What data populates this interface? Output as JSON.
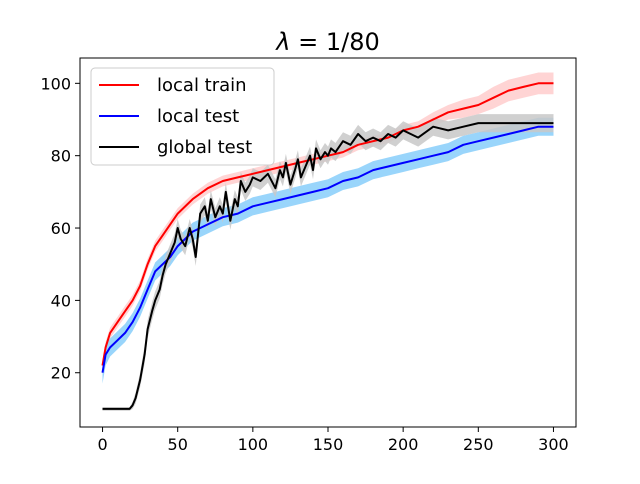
{
  "chart_data": {
    "type": "line",
    "title": "λ = 1/80",
    "title_parts": {
      "var": "λ",
      "rest": " = 1/80"
    },
    "xlabel": "",
    "ylabel": "",
    "xlim": [
      -15,
      315
    ],
    "ylim": [
      5,
      107
    ],
    "xticks": [
      0,
      50,
      100,
      150,
      200,
      250,
      300
    ],
    "yticks": [
      20,
      40,
      60,
      80,
      100
    ],
    "grid": false,
    "legend_position": "top-left",
    "series": [
      {
        "name": "local train",
        "color": "#ff0000",
        "band_color": "#ffcccc",
        "x": [
          0,
          2,
          5,
          10,
          15,
          20,
          25,
          30,
          35,
          40,
          45,
          50,
          60,
          70,
          80,
          90,
          100,
          110,
          120,
          130,
          140,
          150,
          160,
          170,
          180,
          190,
          200,
          210,
          220,
          230,
          240,
          250,
          260,
          270,
          280,
          290,
          300
        ],
        "y": [
          22,
          27,
          31,
          34,
          37,
          40,
          44,
          50,
          55,
          58,
          61,
          64,
          68,
          71,
          73,
          74,
          75,
          76,
          77,
          78,
          79,
          80,
          81,
          83,
          84,
          85,
          87,
          88,
          90,
          92,
          93,
          94,
          96,
          98,
          99,
          100,
          100
        ],
        "band": [
          1.5,
          1.5,
          1.5,
          1.5,
          1.5,
          1.5,
          1.5,
          1.5,
          1.5,
          1.5,
          1.5,
          1.5,
          1.5,
          1.5,
          1.5,
          1.5,
          1.5,
          1.5,
          1.5,
          1.5,
          1.5,
          1.5,
          1.5,
          1.5,
          1.5,
          1.5,
          1.5,
          1.5,
          2,
          2,
          2.5,
          2.5,
          3,
          3,
          3,
          3,
          3
        ]
      },
      {
        "name": "local test",
        "color": "#0000ff",
        "band_color": "#87cefa",
        "x": [
          0,
          2,
          5,
          10,
          15,
          20,
          25,
          30,
          35,
          40,
          45,
          50,
          60,
          70,
          80,
          90,
          100,
          110,
          120,
          130,
          140,
          150,
          160,
          170,
          180,
          190,
          200,
          210,
          220,
          230,
          240,
          250,
          260,
          270,
          280,
          290,
          300
        ],
        "y": [
          20,
          25,
          27,
          29,
          31,
          34,
          38,
          43,
          48,
          50,
          52,
          55,
          59,
          61,
          63,
          64,
          66,
          67,
          68,
          69,
          70,
          71,
          73,
          74,
          76,
          77,
          78,
          79,
          80,
          81,
          83,
          84,
          85,
          86,
          87,
          88,
          88
        ],
        "band": [
          3,
          3,
          2.5,
          2.5,
          2.5,
          2.5,
          2.5,
          2.5,
          2.5,
          2.5,
          2.5,
          2.5,
          2.5,
          2.5,
          2.5,
          2.5,
          2.5,
          2.5,
          2.5,
          2.5,
          2.5,
          2.5,
          2.5,
          2.5,
          2.5,
          2.5,
          2.5,
          2.5,
          2.5,
          2.5,
          2.5,
          2.5,
          2.5,
          2.5,
          2.5,
          2.5,
          2.5
        ]
      },
      {
        "name": "global test",
        "color": "#000000",
        "band_color": "#c8c8c8",
        "x": [
          0,
          5,
          10,
          15,
          18,
          20,
          22,
          25,
          28,
          30,
          33,
          35,
          38,
          40,
          42,
          45,
          48,
          50,
          52,
          55,
          58,
          60,
          62,
          65,
          68,
          70,
          72,
          75,
          78,
          80,
          82,
          85,
          88,
          90,
          92,
          95,
          98,
          100,
          105,
          110,
          115,
          118,
          120,
          122,
          125,
          128,
          130,
          132,
          135,
          138,
          140,
          142,
          145,
          148,
          150,
          152,
          155,
          160,
          165,
          170,
          175,
          180,
          185,
          190,
          195,
          200,
          210,
          220,
          230,
          240,
          250,
          260,
          270,
          280,
          290,
          300
        ],
        "y": [
          10,
          10,
          10,
          10,
          10,
          11,
          13,
          18,
          25,
          32,
          37,
          40,
          43,
          47,
          50,
          53,
          56,
          60,
          57,
          55,
          60,
          57,
          52,
          64,
          66,
          62,
          68,
          63,
          66,
          64,
          70,
          62,
          68,
          66,
          73,
          70,
          72,
          74,
          73,
          75,
          71,
          76,
          74,
          78,
          72,
          76,
          79,
          74,
          77,
          80,
          76,
          82,
          79,
          81,
          80,
          82,
          81,
          84,
          83,
          86,
          84,
          85,
          84,
          86,
          85,
          87,
          85,
          88,
          87,
          88,
          89,
          89,
          89,
          89,
          89,
          89
        ],
        "band": [
          0.5,
          0.5,
          0.5,
          0.5,
          0.5,
          1,
          1.5,
          2,
          2.5,
          2.5,
          2.5,
          2.5,
          2.5,
          2.5,
          2.5,
          2.5,
          2.5,
          2.5,
          2.5,
          2.5,
          2.5,
          2.5,
          2.5,
          2.5,
          2.5,
          2.5,
          2.5,
          2.5,
          2.5,
          2.5,
          2.5,
          2.5,
          2.5,
          2.5,
          2.5,
          2.5,
          2.5,
          2.5,
          2.5,
          2.5,
          2.5,
          2.5,
          2.5,
          2.5,
          2.5,
          2.5,
          2.5,
          2.5,
          2.5,
          2.5,
          2.5,
          2.5,
          2.5,
          2.5,
          2.5,
          2.5,
          2.5,
          2.5,
          2.5,
          2.5,
          2.5,
          2.5,
          2.5,
          2.5,
          2.5,
          2.5,
          2.5,
          2.5,
          2.5,
          2.5,
          2.5,
          2.5,
          2.5,
          2.5,
          2.5,
          2.5
        ]
      }
    ]
  }
}
